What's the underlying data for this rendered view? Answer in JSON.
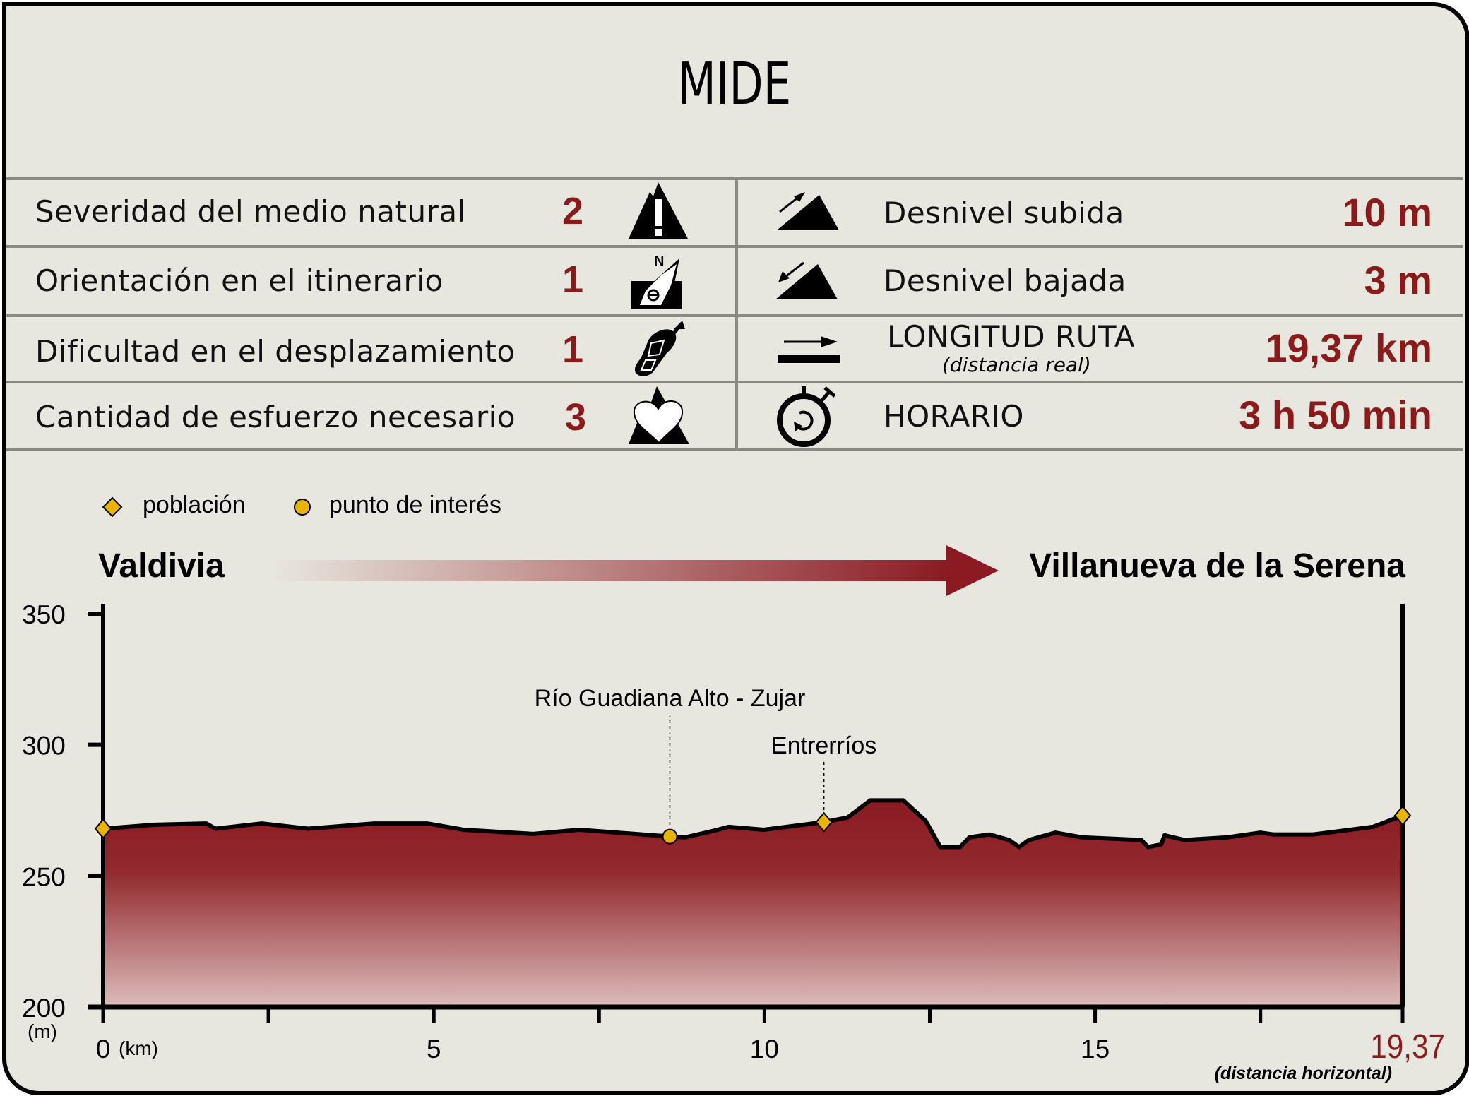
{
  "title": "MIDE",
  "mide": [
    {
      "label": "Severidad del medio natural",
      "value": "2",
      "icon": "warning-mountain-icon"
    },
    {
      "label": "Orientación en el itinerario",
      "value": "1",
      "icon": "compass-north-icon"
    },
    {
      "label": "Dificultad en el desplazamiento",
      "value": "1",
      "icon": "boot-sole-icon"
    },
    {
      "label": "Cantidad de esfuerzo necesario",
      "value": "3",
      "icon": "heart-mountain-icon"
    }
  ],
  "stats": [
    {
      "label": "Desnivel subida",
      "value": "10 m",
      "icon": "ascent-icon"
    },
    {
      "label": "Desnivel bajada",
      "value": "3 m",
      "icon": "descent-icon"
    },
    {
      "label": "LONGITUD RUTA",
      "sublabel": "(distancia real)",
      "value": "19,37 km",
      "icon": "distance-icon"
    },
    {
      "label": "HORARIO",
      "value": "3 h 50 min",
      "icon": "stopwatch-icon"
    }
  ],
  "legend": {
    "town": "población",
    "poi": "punto de interés"
  },
  "route": {
    "start": "Valdivia",
    "end": "Villanueva de la Serena"
  },
  "colors": {
    "accent": "#8b1a1a",
    "marker": "#e8b400",
    "grid_line": "#8a8a82",
    "background": "#e8e7df"
  },
  "chart_data": {
    "type": "area",
    "xlabel": "(km)",
    "ylabel": "(m)",
    "xlim": [
      0,
      19.65
    ],
    "ylim": [
      200,
      350
    ],
    "yticks": [
      200,
      250,
      300,
      350
    ],
    "xticks": [
      0,
      2.5,
      5,
      7.5,
      10,
      12.5,
      15,
      17.5
    ],
    "xtick_labels": [
      "0",
      "5",
      "10",
      "15"
    ],
    "xtick_label_values": [
      0,
      5,
      10,
      15
    ],
    "end_label": "19,37",
    "end_sublabel": "(distancia horizontal)",
    "grid": false,
    "profile": {
      "x": [
        0,
        0.78,
        1.56,
        1.7,
        2.4,
        3.1,
        4.1,
        4.9,
        5.45,
        6.5,
        7.2,
        8.57,
        8.8,
        9.2,
        9.46,
        9.99,
        10.9,
        11.26,
        11.6,
        12.1,
        12.44,
        12.66,
        12.96,
        13.1,
        13.4,
        13.7,
        13.85,
        14.0,
        14.4,
        14.8,
        15.7,
        15.8,
        16.0,
        16.05,
        16.35,
        17.0,
        17.5,
        17.7,
        18.3,
        19.2,
        19.65
      ],
      "y": [
        268,
        269.5,
        270,
        268,
        270,
        268,
        270,
        270,
        267.6,
        266,
        267.6,
        265,
        264.7,
        267,
        268.7,
        267.6,
        270.5,
        272.3,
        278.8,
        278.8,
        270.9,
        261,
        261,
        264.7,
        265.8,
        263.7,
        261,
        263.7,
        266.5,
        264.7,
        263.7,
        261,
        262,
        265.5,
        263.7,
        264.7,
        266.5,
        265.8,
        265.8,
        268.7,
        273
      ]
    },
    "markers": [
      {
        "type": "town",
        "x": 0,
        "y": 268,
        "label": ""
      },
      {
        "type": "poi",
        "x": 8.57,
        "y": 265,
        "label": "Río Guadiana Alto - Zujar"
      },
      {
        "type": "town",
        "x": 10.9,
        "y": 270.5,
        "label": "Entrerríos"
      },
      {
        "type": "town",
        "x": 19.65,
        "y": 273,
        "label": ""
      }
    ]
  }
}
